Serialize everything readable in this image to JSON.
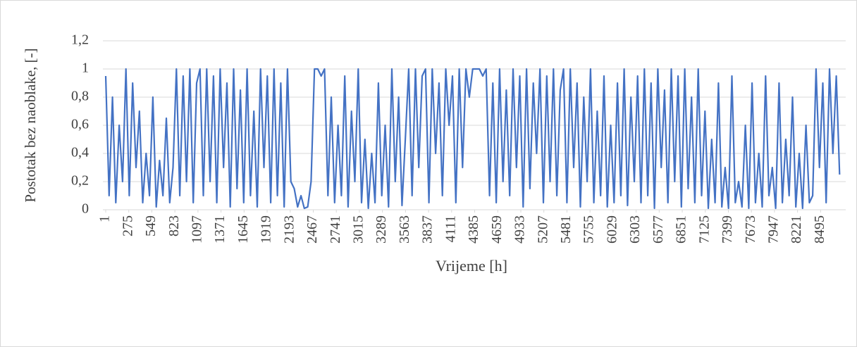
{
  "chart_data": {
    "type": "line",
    "y_label": "Postotak bez naoblake, [-]",
    "x_label": "Vrijeme [h]",
    "color": "#4472c4",
    "grid": true,
    "xlim": [
      1,
      8760
    ],
    "ylim": [
      0,
      1.2
    ],
    "yticks": [
      0,
      {
        "value": 0.2,
        "label": "0,2"
      },
      {
        "value": 0.4,
        "label": "0,4"
      },
      {
        "value": 0.6,
        "label": "0,6"
      },
      {
        "value": 0.8,
        "label": "0,8"
      },
      1,
      {
        "value": 1.2,
        "label": "1,2"
      }
    ],
    "xticks": [
      1,
      275,
      549,
      823,
      1097,
      1371,
      1645,
      1919,
      2193,
      2467,
      2741,
      3015,
      3289,
      3563,
      3837,
      4111,
      4385,
      4659,
      4933,
      5207,
      5481,
      5755,
      6029,
      6303,
      6577,
      6851,
      7125,
      7399,
      7673,
      7947,
      8221,
      8495
    ],
    "x": [
      1,
      41,
      81,
      121,
      161,
      201,
      241,
      281,
      321,
      361,
      401,
      441,
      481,
      521,
      561,
      601,
      641,
      681,
      721,
      761,
      801,
      841,
      881,
      921,
      961,
      1001,
      1041,
      1081,
      1121,
      1161,
      1201,
      1241,
      1281,
      1321,
      1361,
      1401,
      1441,
      1481,
      1521,
      1561,
      1601,
      1641,
      1681,
      1721,
      1761,
      1801,
      1841,
      1881,
      1921,
      1961,
      2001,
      2041,
      2081,
      2121,
      2161,
      2201,
      2241,
      2281,
      2321,
      2361,
      2401,
      2441,
      2481,
      2521,
      2561,
      2601,
      2641,
      2681,
      2721,
      2761,
      2801,
      2841,
      2881,
      2921,
      2961,
      3001,
      3041,
      3081,
      3121,
      3161,
      3201,
      3241,
      3281,
      3321,
      3361,
      3401,
      3441,
      3481,
      3521,
      3561,
      3601,
      3641,
      3681,
      3721,
      3761,
      3801,
      3841,
      3881,
      3921,
      3961,
      4001,
      4041,
      4081,
      4121,
      4161,
      4201,
      4241,
      4281,
      4321,
      4361,
      4401,
      4441,
      4481,
      4521,
      4561,
      4601,
      4641,
      4681,
      4721,
      4761,
      4801,
      4841,
      4881,
      4921,
      4961,
      5001,
      5041,
      5081,
      5121,
      5161,
      5201,
      5241,
      5281,
      5321,
      5361,
      5401,
      5441,
      5481,
      5521,
      5561,
      5601,
      5641,
      5681,
      5721,
      5761,
      5801,
      5841,
      5881,
      5921,
      5961,
      6001,
      6041,
      6081,
      6121,
      6161,
      6201,
      6241,
      6281,
      6321,
      6361,
      6401,
      6441,
      6481,
      6521,
      6561,
      6601,
      6641,
      6681,
      6721,
      6761,
      6801,
      6841,
      6881,
      6921,
      6961,
      7001,
      7041,
      7081,
      7121,
      7161,
      7201,
      7241,
      7281,
      7321,
      7361,
      7401,
      7441,
      7481,
      7521,
      7561,
      7601,
      7641,
      7681,
      7721,
      7761,
      7801,
      7841,
      7881,
      7921,
      7961,
      8001,
      8041,
      8081,
      8121,
      8161,
      8201,
      8241,
      8281,
      8321,
      8361,
      8401,
      8441,
      8481,
      8521,
      8561,
      8601,
      8641,
      8681,
      8721
    ],
    "values": [
      0.95,
      0.1,
      0.8,
      0.05,
      0.6,
      0.2,
      1,
      0.1,
      0.9,
      0.3,
      0.7,
      0.05,
      0.4,
      0.1,
      0.8,
      0.02,
      0.35,
      0.1,
      0.65,
      0.05,
      0.3,
      1,
      0.1,
      0.95,
      0.2,
      1,
      0.05,
      0.9,
      1,
      0.1,
      1,
      0.2,
      0.95,
      0.05,
      1,
      0.3,
      0.9,
      0.02,
      1,
      0.15,
      0.85,
      0.05,
      1,
      0.1,
      0.7,
      0.02,
      1,
      0.3,
      0.95,
      0.05,
      1,
      0.1,
      0.9,
      0.02,
      1,
      0.2,
      0.15,
      0.02,
      0.1,
      0.01,
      0.02,
      0.2,
      1,
      1,
      0.95,
      1,
      0.1,
      0.8,
      0.05,
      0.6,
      0.1,
      0.95,
      0.02,
      0.7,
      0.2,
      1,
      0.05,
      0.5,
      0.01,
      0.4,
      0.05,
      0.9,
      0.1,
      0.6,
      0.02,
      1,
      0.2,
      0.8,
      0.03,
      0.5,
      1,
      0.1,
      1,
      0.3,
      0.95,
      1,
      0.05,
      1,
      0.4,
      0.9,
      0.1,
      1,
      0.6,
      0.95,
      0.05,
      1,
      0.3,
      1,
      0.8,
      1,
      1,
      1,
      0.95,
      1,
      0.1,
      0.9,
      0.05,
      1,
      0.2,
      0.85,
      0.1,
      1,
      0.3,
      0.95,
      0.02,
      1,
      0.15,
      0.9,
      0.4,
      1,
      0.05,
      0.95,
      0.2,
      1,
      0.1,
      0.85,
      1,
      0.05,
      1,
      0.3,
      0.9,
      0.02,
      0.8,
      0.2,
      1,
      0.05,
      0.7,
      0.1,
      0.95,
      0.02,
      0.6,
      0.05,
      0.9,
      0.1,
      1,
      0.03,
      0.8,
      0.2,
      0.95,
      0.05,
      1,
      0.1,
      0.9,
      0.01,
      1,
      0.3,
      0.85,
      0.05,
      1,
      0.2,
      0.95,
      0.02,
      1,
      0.15,
      0.8,
      0.05,
      1,
      0.1,
      0.7,
      0.01,
      0.5,
      0.05,
      0.9,
      0.02,
      0.3,
      0.01,
      0.95,
      0.05,
      0.2,
      0.02,
      0.6,
      0.01,
      0.9,
      0.05,
      0.4,
      0.02,
      0.95,
      0.1,
      0.3,
      0.01,
      0.9,
      0.05,
      0.5,
      0.1,
      0.8,
      0.02,
      0.4,
      0.01,
      0.6,
      0.05,
      0.1,
      1,
      0.3,
      0.9,
      0.05,
      1,
      0.4,
      0.95,
      0.25
    ]
  }
}
